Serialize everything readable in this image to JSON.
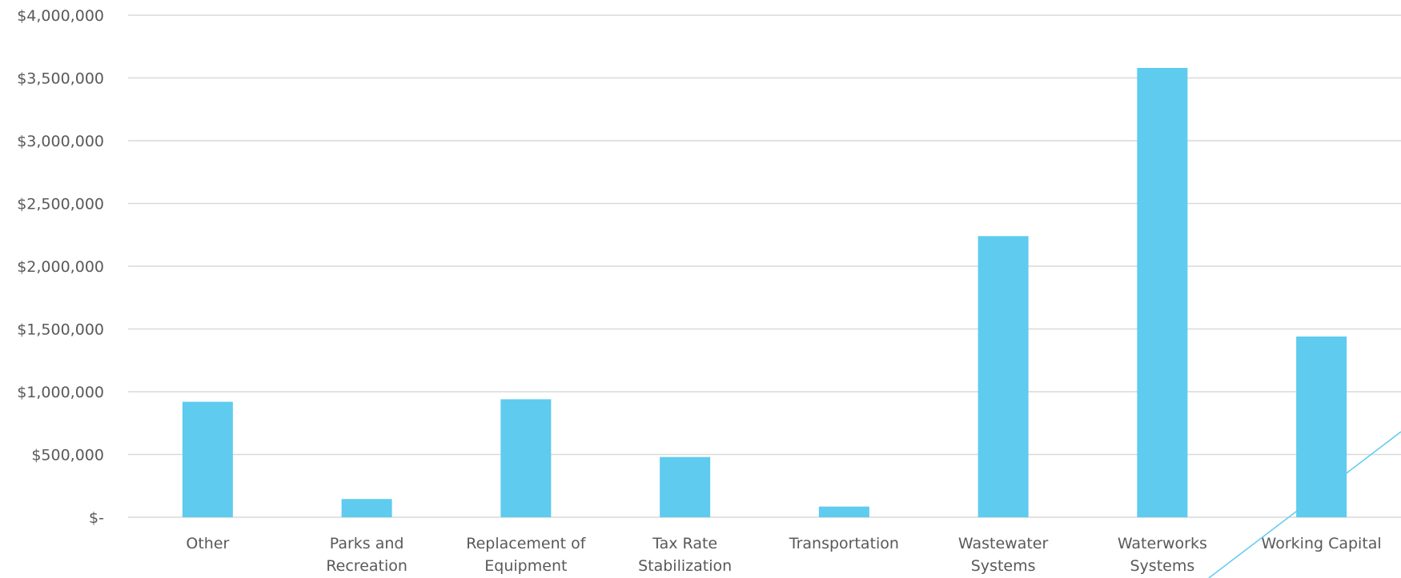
{
  "chart_data": {
    "type": "bar",
    "title": "",
    "xlabel": "",
    "ylabel": "",
    "categories": [
      [
        "Other"
      ],
      [
        "Parks and",
        "Recreation"
      ],
      [
        "Replacement of",
        "Equipment"
      ],
      [
        "Tax Rate",
        "Stabilization"
      ],
      [
        "Transportation"
      ],
      [
        "Wastewater",
        "Systems"
      ],
      [
        "Waterworks",
        "Systems"
      ],
      [
        "Working Capital"
      ]
    ],
    "values": [
      920000,
      145000,
      940000,
      480000,
      85000,
      2240000,
      3580000,
      1440000
    ],
    "ylim": [
      0,
      4000000
    ],
    "yticks": [
      0,
      500000,
      1000000,
      1500000,
      2000000,
      2500000,
      3000000,
      3500000,
      4000000
    ],
    "ytick_labels": [
      "$-",
      "$500,000",
      "$1,000,000",
      "$1,500,000",
      "$2,000,000",
      "$2,500,000",
      "$3,000,000",
      "$3,500,000",
      "$4,000,000"
    ],
    "grid": true,
    "legend": "none",
    "colors": {
      "bar": "#5ecbef",
      "grid": "#d9d9d9",
      "text": "#595959"
    }
  }
}
